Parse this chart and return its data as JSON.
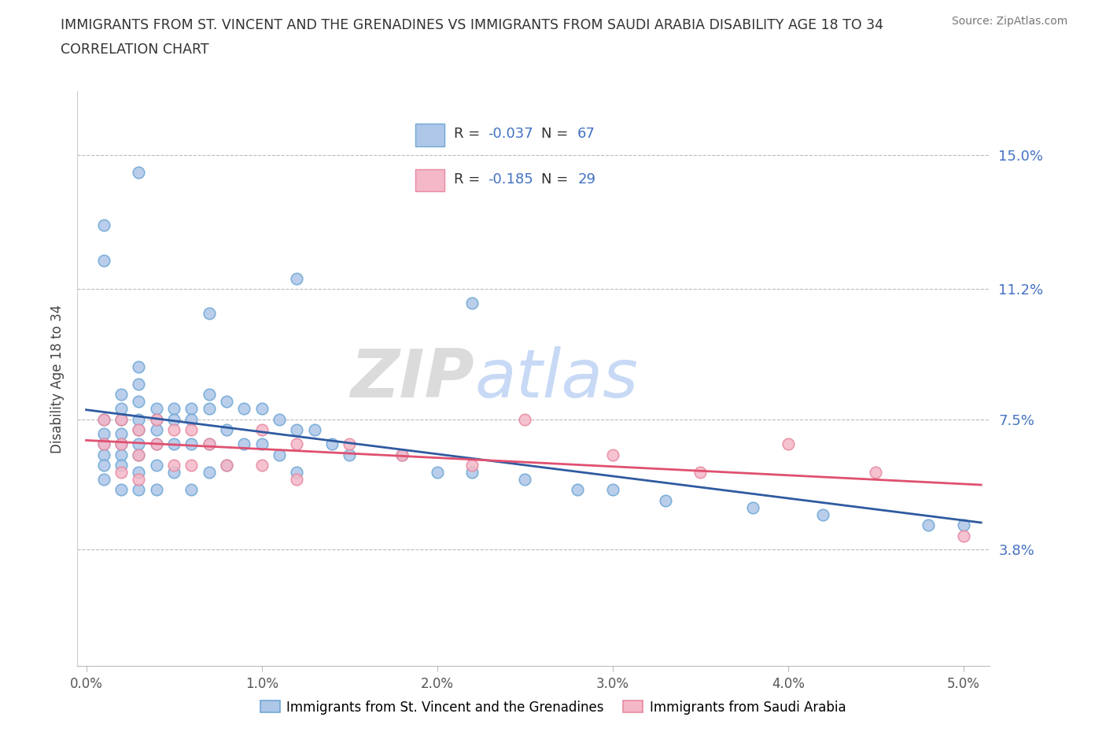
{
  "title_line1": "IMMIGRANTS FROM ST. VINCENT AND THE GRENADINES VS IMMIGRANTS FROM SAUDI ARABIA DISABILITY AGE 18 TO 34",
  "title_line2": "CORRELATION CHART",
  "source": "Source: ZipAtlas.com",
  "watermark": "ZIPatlas",
  "ylabel": "Disability Age 18 to 34",
  "xlim": [
    -0.0005,
    0.0515
  ],
  "ylim": [
    0.005,
    0.168
  ],
  "ytick_vals": [
    0.038,
    0.075,
    0.112,
    0.15
  ],
  "ytick_labels": [
    "3.8%",
    "7.5%",
    "11.2%",
    "15.0%"
  ],
  "xtick_vals": [
    0.0,
    0.01,
    0.02,
    0.03,
    0.04,
    0.05
  ],
  "xtick_labels": [
    "0.0%",
    "1.0%",
    "2.0%",
    "3.0%",
    "4.0%",
    "5.0%"
  ],
  "blue_face": "#AEC6E8",
  "blue_edge": "#6FA8D6",
  "pink_face": "#F4B8C8",
  "pink_edge": "#E88AA0",
  "blue_line_color": "#2F5AA0",
  "pink_line_color": "#E05070",
  "accent_color": "#4472C4",
  "R_blue": -0.037,
  "N_blue": 67,
  "R_pink": -0.185,
  "N_pink": 29,
  "legend_label_blue": "Immigrants from St. Vincent and the Grenadines",
  "legend_label_pink": "Immigrants from Saudi Arabia",
  "blue_scatter_x": [
    0.001,
    0.001,
    0.001,
    0.001,
    0.001,
    0.001,
    0.002,
    0.002,
    0.002,
    0.002,
    0.002,
    0.002,
    0.002,
    0.002,
    0.003,
    0.003,
    0.003,
    0.003,
    0.003,
    0.003,
    0.003,
    0.003,
    0.003,
    0.004,
    0.004,
    0.004,
    0.004,
    0.004,
    0.004,
    0.005,
    0.005,
    0.005,
    0.005,
    0.006,
    0.006,
    0.006,
    0.006,
    0.007,
    0.007,
    0.007,
    0.007,
    0.008,
    0.008,
    0.008,
    0.009,
    0.009,
    0.01,
    0.01,
    0.011,
    0.011,
    0.012,
    0.012,
    0.013,
    0.014,
    0.015,
    0.018,
    0.02,
    0.022,
    0.025,
    0.028,
    0.03,
    0.033,
    0.038,
    0.042,
    0.048,
    0.05
  ],
  "blue_scatter_y": [
    0.075,
    0.071,
    0.068,
    0.065,
    0.062,
    0.058,
    0.082,
    0.078,
    0.075,
    0.071,
    0.068,
    0.065,
    0.062,
    0.055,
    0.09,
    0.085,
    0.08,
    0.075,
    0.072,
    0.068,
    0.065,
    0.06,
    0.055,
    0.078,
    0.075,
    0.072,
    0.068,
    0.062,
    0.055,
    0.078,
    0.075,
    0.068,
    0.06,
    0.078,
    0.075,
    0.068,
    0.055,
    0.082,
    0.078,
    0.068,
    0.06,
    0.08,
    0.072,
    0.062,
    0.078,
    0.068,
    0.078,
    0.068,
    0.075,
    0.065,
    0.072,
    0.06,
    0.072,
    0.068,
    0.065,
    0.065,
    0.06,
    0.06,
    0.058,
    0.055,
    0.055,
    0.052,
    0.05,
    0.048,
    0.045,
    0.045
  ],
  "blue_outlier_x": [
    0.003,
    0.001,
    0.001,
    0.012,
    0.022,
    0.007
  ],
  "blue_outlier_y": [
    0.145,
    0.13,
    0.12,
    0.115,
    0.108,
    0.105
  ],
  "pink_scatter_x": [
    0.001,
    0.001,
    0.002,
    0.002,
    0.002,
    0.003,
    0.003,
    0.003,
    0.004,
    0.004,
    0.005,
    0.005,
    0.006,
    0.006,
    0.007,
    0.008,
    0.01,
    0.01,
    0.012,
    0.012,
    0.015,
    0.018,
    0.022,
    0.025,
    0.03,
    0.035,
    0.04,
    0.045,
    0.05
  ],
  "pink_scatter_y": [
    0.075,
    0.068,
    0.075,
    0.068,
    0.06,
    0.072,
    0.065,
    0.058,
    0.075,
    0.068,
    0.072,
    0.062,
    0.072,
    0.062,
    0.068,
    0.062,
    0.072,
    0.062,
    0.068,
    0.058,
    0.068,
    0.065,
    0.062,
    0.075,
    0.065,
    0.06,
    0.068,
    0.06,
    0.042
  ]
}
